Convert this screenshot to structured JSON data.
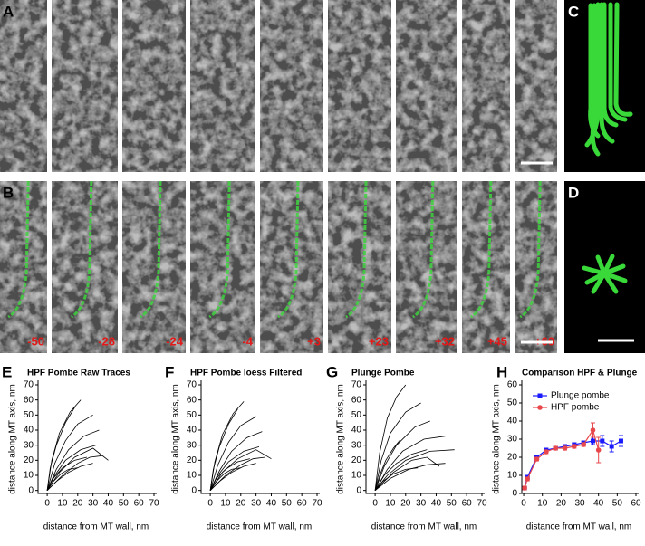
{
  "micrographs": {
    "row_a_label": "A",
    "row_b_label": "B",
    "frame_labels": [
      "-50",
      "-28",
      "-24",
      "-4",
      "+3",
      "+23",
      "+32",
      "+45",
      "+60"
    ],
    "model_side_label": "C",
    "model_end_label": "D"
  },
  "chart_data": [
    {
      "type": "line",
      "label": "E",
      "title": "HPF Pombe Raw Traces",
      "x_label": "distance  from MT wall, nm",
      "y_label": "distance along MT axis, nm",
      "line_color": "#000000",
      "xlim": [
        -6,
        70
      ],
      "ylim": [
        -2,
        70
      ],
      "xticks": [
        0,
        10,
        20,
        30,
        40,
        50,
        60,
        70
      ],
      "yticks": [
        0,
        10,
        20,
        30,
        40,
        50,
        60,
        70
      ],
      "series": [
        {
          "x": [
            0,
            3,
            8,
            15,
            22
          ],
          "values": [
            0,
            20,
            38,
            52,
            60
          ]
        },
        {
          "x": [
            0,
            2,
            6,
            12,
            18
          ],
          "values": [
            0,
            15,
            30,
            45,
            55
          ]
        },
        {
          "x": [
            0,
            5,
            12,
            20,
            30
          ],
          "values": [
            0,
            18,
            33,
            44,
            50
          ]
        },
        {
          "x": [
            0,
            6,
            14,
            24,
            34
          ],
          "values": [
            0,
            14,
            27,
            36,
            40
          ]
        },
        {
          "x": [
            0,
            5,
            12,
            22,
            32
          ],
          "values": [
            0,
            10,
            20,
            27,
            30
          ]
        },
        {
          "x": [
            0,
            8,
            18,
            30,
            40
          ],
          "values": [
            0,
            12,
            22,
            28,
            20
          ]
        },
        {
          "x": [
            0,
            4,
            10,
            18,
            26
          ],
          "values": [
            0,
            8,
            15,
            20,
            22
          ]
        },
        {
          "x": [
            0,
            6,
            14,
            22,
            30
          ],
          "values": [
            0,
            6,
            12,
            16,
            18
          ]
        },
        {
          "x": [
            0,
            4,
            9,
            14,
            20
          ],
          "values": [
            0,
            6,
            11,
            14,
            15
          ]
        },
        {
          "x": [
            0,
            10,
            20,
            28,
            36
          ],
          "values": [
            0,
            10,
            18,
            22,
            23
          ]
        }
      ]
    },
    {
      "type": "line",
      "label": "F",
      "title": "HPF Pombe loess Filtered",
      "x_label": "distance  from MT wall, nm",
      "y_label": "distance along MT axis, nm",
      "line_color": "#000000",
      "xlim": [
        -6,
        70
      ],
      "ylim": [
        -2,
        70
      ],
      "xticks": [
        0,
        10,
        20,
        30,
        40,
        50,
        60,
        70
      ],
      "yticks": [
        0,
        10,
        20,
        30,
        40,
        50,
        60,
        70
      ],
      "series": [
        {
          "x": [
            0,
            3,
            8,
            15,
            22
          ],
          "values": [
            0,
            19,
            37,
            51,
            59
          ]
        },
        {
          "x": [
            0,
            2,
            6,
            12,
            18
          ],
          "values": [
            0,
            14,
            29,
            44,
            54
          ]
        },
        {
          "x": [
            0,
            5,
            12,
            20,
            30
          ],
          "values": [
            0,
            17,
            32,
            43,
            49
          ]
        },
        {
          "x": [
            0,
            6,
            14,
            24,
            34
          ],
          "values": [
            0,
            13,
            26,
            35,
            39
          ]
        },
        {
          "x": [
            0,
            5,
            12,
            22,
            32
          ],
          "values": [
            0,
            10,
            19,
            26,
            29
          ]
        },
        {
          "x": [
            0,
            8,
            18,
            30,
            40
          ],
          "values": [
            0,
            12,
            21,
            27,
            21
          ]
        },
        {
          "x": [
            0,
            4,
            10,
            18,
            26
          ],
          "values": [
            0,
            8,
            14,
            19,
            21
          ]
        },
        {
          "x": [
            0,
            6,
            14,
            22,
            30
          ],
          "values": [
            0,
            6,
            12,
            16,
            18
          ]
        },
        {
          "x": [
            0,
            4,
            9,
            14,
            20
          ],
          "values": [
            0,
            6,
            11,
            14,
            15
          ]
        },
        {
          "x": [
            0,
            10,
            20,
            28,
            36
          ],
          "values": [
            0,
            10,
            17,
            21,
            22
          ]
        }
      ]
    },
    {
      "type": "line",
      "label": "G",
      "title": "Plunge Pombe",
      "x_label": "distance  from MT wall, nm",
      "y_label": "distance along MT axis, nm",
      "line_color": "#000000",
      "xlim": [
        -6,
        70
      ],
      "ylim": [
        -2,
        70
      ],
      "xticks": [
        0,
        10,
        20,
        30,
        40,
        50,
        60,
        70
      ],
      "yticks": [
        0,
        10,
        20,
        30,
        40,
        50,
        60,
        70
      ],
      "series": [
        {
          "x": [
            0,
            3,
            8,
            14,
            20
          ],
          "values": [
            0,
            25,
            48,
            62,
            70
          ]
        },
        {
          "x": [
            0,
            4,
            10,
            20,
            30
          ],
          "values": [
            0,
            20,
            38,
            52,
            58
          ]
        },
        {
          "x": [
            0,
            6,
            14,
            26,
            36
          ],
          "values": [
            0,
            16,
            30,
            42,
            46
          ]
        },
        {
          "x": [
            0,
            8,
            18,
            32,
            46
          ],
          "values": [
            0,
            14,
            26,
            34,
            36
          ]
        },
        {
          "x": [
            0,
            8,
            20,
            36,
            52
          ],
          "values": [
            0,
            10,
            20,
            26,
            27
          ]
        },
        {
          "x": [
            0,
            6,
            14,
            24,
            34
          ],
          "values": [
            0,
            10,
            18,
            24,
            27
          ]
        },
        {
          "x": [
            0,
            10,
            22,
            34,
            46
          ],
          "values": [
            0,
            8,
            14,
            17,
            18
          ]
        },
        {
          "x": [
            0,
            5,
            12,
            20,
            28
          ],
          "values": [
            0,
            6,
            11,
            14,
            15
          ]
        },
        {
          "x": [
            0,
            3,
            7,
            12,
            16
          ],
          "values": [
            0,
            10,
            20,
            28,
            33
          ]
        },
        {
          "x": [
            0,
            12,
            24,
            34,
            42
          ],
          "values": [
            0,
            12,
            20,
            22,
            16
          ]
        }
      ]
    },
    {
      "type": "errorline",
      "label": "H",
      "title": "Comparison HPF & Plunge",
      "x_label": "distance from MT wall, nm",
      "y_label": "distance along MT axis, nm",
      "xlim": [
        -1,
        60
      ],
      "ylim": [
        0,
        60
      ],
      "xticks": [
        0,
        10,
        20,
        30,
        40,
        50,
        60
      ],
      "yticks": [
        0,
        10,
        20,
        30,
        40,
        50,
        60
      ],
      "legend": "upper left",
      "series": [
        {
          "name": "Plunge pombe",
          "color": "#1a1aff",
          "marker": "square",
          "x": [
            0.5,
            2,
            7,
            12,
            17,
            22,
            27,
            32,
            37,
            42,
            47,
            52
          ],
          "values": [
            3,
            9,
            20,
            24,
            25,
            26,
            27,
            28,
            29,
            29,
            26,
            29
          ],
          "errors": [
            1,
            1,
            1,
            1,
            1,
            1,
            1,
            1,
            2,
            3,
            3,
            3
          ]
        },
        {
          "name": "HPF pombe",
          "color": "#e8484b",
          "marker": "circle",
          "x": [
            0.5,
            2,
            7,
            12,
            17,
            22,
            27,
            32,
            37,
            40
          ],
          "values": [
            3,
            8,
            19,
            23,
            25,
            25,
            26,
            27,
            35,
            24
          ],
          "errors": [
            1,
            1,
            1,
            1,
            1,
            1,
            1,
            1,
            4,
            7
          ]
        }
      ]
    }
  ]
}
